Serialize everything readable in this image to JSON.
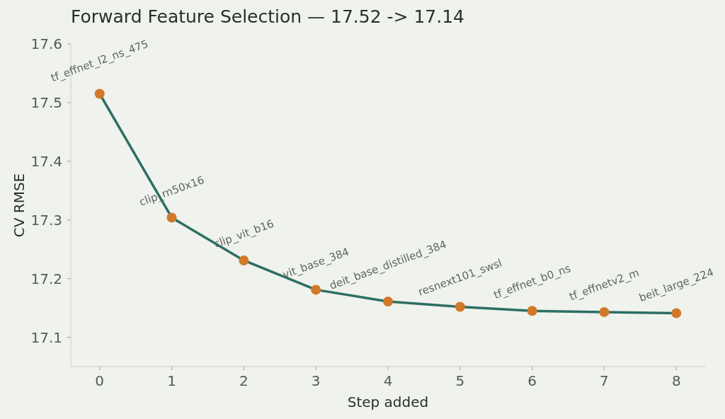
{
  "chart_data": {
    "type": "line",
    "title": "Forward Feature Selection — 17.52 -> 17.14",
    "xlabel": "Step added",
    "ylabel": "CV RMSE",
    "x": [
      0,
      1,
      2,
      3,
      4,
      5,
      6,
      7,
      8
    ],
    "series": [
      {
        "color": "#2d6e63",
        "colors": [
          "#d1792b",
          "#d1792b",
          "#d1792b",
          "#d1792b",
          "#d1792b",
          "#d1792b",
          "#d1792b",
          "#d1792b",
          "#d1792b"
        ],
        "values": [
          17.515,
          17.304,
          17.231,
          17.181,
          17.161,
          17.152,
          17.145,
          17.143,
          17.141
        ]
      }
    ],
    "xlim": [
      -0.4,
      8.4
    ],
    "xticks": [
      0,
      1,
      2,
      3,
      4,
      5,
      6,
      7,
      8
    ],
    "ylim": [
      17.05,
      17.6
    ],
    "yticks": [
      17.1,
      17.2,
      17.3,
      17.4,
      17.5,
      17.6
    ],
    "marker": "circle",
    "line_style": "solid",
    "annotations": [
      {
        "text": "tf_effnet_l2_ns_475",
        "x": 0,
        "y": 17.515
      },
      {
        "text": "clip_rn50x16",
        "x": 1,
        "y": 17.304
      },
      {
        "text": "clip_vit_b16",
        "x": 2,
        "y": 17.231
      },
      {
        "text": "vit_base_384",
        "x": 3,
        "y": 17.181
      },
      {
        "text": "deit_base_distilled_384",
        "x": 4,
        "y": 17.161
      },
      {
        "text": "resnext101_swsl",
        "x": 5,
        "y": 17.152
      },
      {
        "text": "tf_effnet_b0_ns",
        "x": 6,
        "y": 17.145
      },
      {
        "text": "tf_effnetv2_m",
        "x": 7,
        "y": 17.143
      },
      {
        "text": "beit_large_224",
        "x": 8,
        "y": 17.141
      }
    ]
  }
}
